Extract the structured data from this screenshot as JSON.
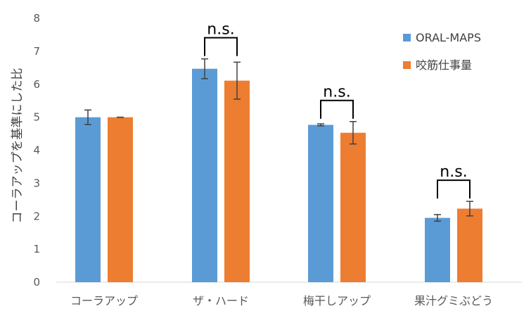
{
  "chart_data": {
    "type": "bar",
    "categories": [
      "コーラアップ",
      "ザ・ハード",
      "梅干しアップ",
      "果汁グミぶどう"
    ],
    "series": [
      {
        "name": "ORAL-MAPS",
        "color": "#5B9BD5",
        "values": [
          5.0,
          6.47,
          4.77,
          1.95
        ],
        "errors": [
          0.22,
          0.3,
          0.03,
          0.1
        ]
      },
      {
        "name": "咬筋仕事量",
        "color": "#ED7D31",
        "values": [
          5.0,
          6.11,
          4.53,
          2.23
        ],
        "errors": [
          0.0,
          0.56,
          0.34,
          0.22
        ]
      }
    ],
    "ylabel": "コーラアップを基準にした比",
    "xlabel": "",
    "ylim": [
      0,
      8
    ],
    "yticks": [
      0,
      1,
      2,
      3,
      4,
      5,
      6,
      7,
      8
    ],
    "grid": false,
    "legend_position": "top-right",
    "annotations": [
      {
        "text": "n.s.",
        "category": "ザ・ハード"
      },
      {
        "text": "n.s.",
        "category": "梅干しアップ"
      },
      {
        "text": "n.s.",
        "category": "果汁グミぶどう"
      }
    ]
  }
}
